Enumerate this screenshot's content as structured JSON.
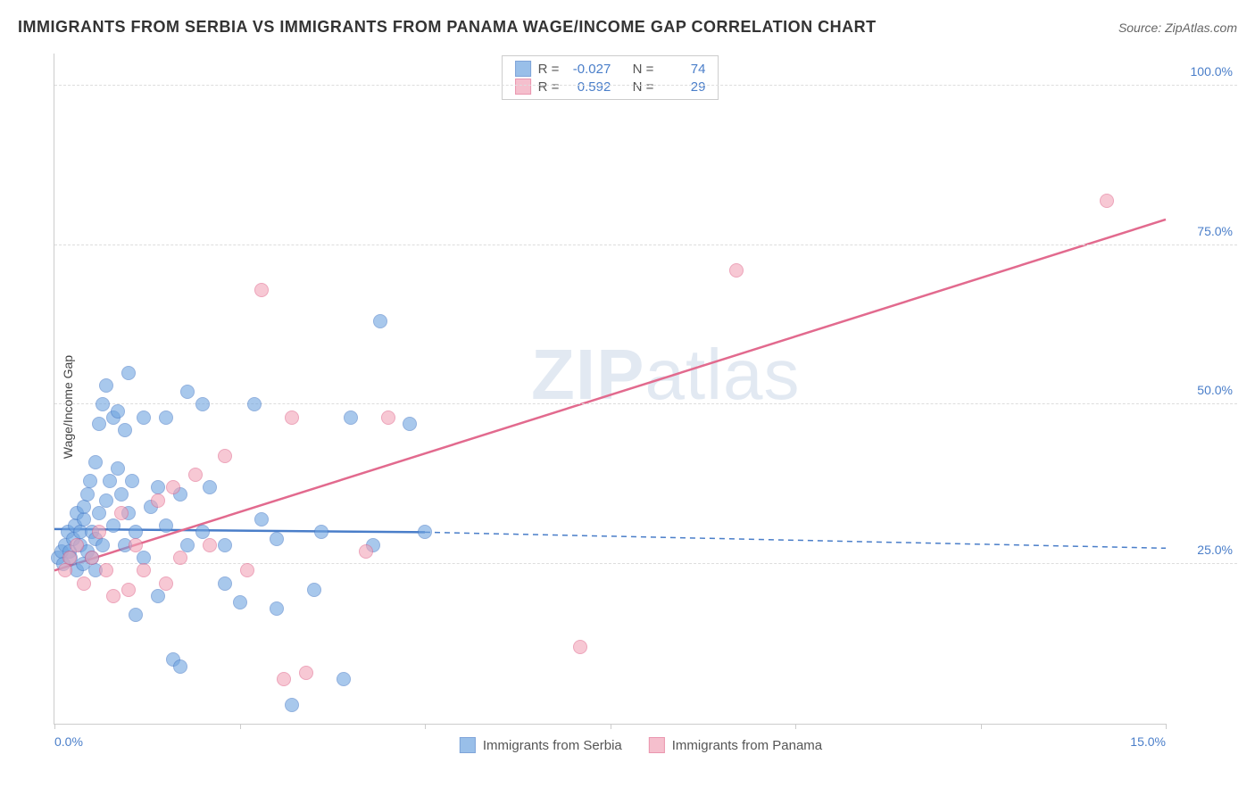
{
  "title": "IMMIGRANTS FROM SERBIA VS IMMIGRANTS FROM PANAMA WAGE/INCOME GAP CORRELATION CHART",
  "source_prefix": "Source: ",
  "source_name": "ZipAtlas.com",
  "watermark_left": "ZIP",
  "watermark_right": "atlas",
  "chart": {
    "type": "scatter",
    "ylabel": "Wage/Income Gap",
    "background_color": "#ffffff",
    "grid_color": "#dddddd",
    "axis_color": "#cccccc",
    "tick_label_color": "#4a7ec9",
    "xlim": [
      0,
      15
    ],
    "ylim": [
      0,
      105
    ],
    "x_ticks": [
      0,
      2.5,
      5,
      7.5,
      10,
      12.5,
      15
    ],
    "x_tick_labels_shown": {
      "0": "0.0%",
      "15": "15.0%"
    },
    "y_gridlines": [
      25,
      50,
      75,
      100
    ],
    "y_tick_labels": {
      "25": "25.0%",
      "50": "50.0%",
      "75": "75.0%",
      "100": "100.0%"
    },
    "point_radius": 8,
    "point_fill_opacity": 0.35,
    "series": [
      {
        "name": "Immigrants from Serbia",
        "color": "#6fa4e0",
        "stroke": "#4a7ec9",
        "R": "-0.027",
        "N": "74",
        "trend": {
          "x1": 0.0,
          "y1": 30.5,
          "x2": 5.0,
          "y2": 30.0,
          "dash_x2": 15.0,
          "dash_y2": 27.5,
          "stroke_width": 2.5
        },
        "points": [
          [
            0.05,
            26
          ],
          [
            0.1,
            27
          ],
          [
            0.12,
            25
          ],
          [
            0.15,
            28
          ],
          [
            0.18,
            30
          ],
          [
            0.2,
            27
          ],
          [
            0.22,
            26
          ],
          [
            0.25,
            29
          ],
          [
            0.28,
            31
          ],
          [
            0.3,
            24
          ],
          [
            0.3,
            33
          ],
          [
            0.35,
            28
          ],
          [
            0.35,
            30
          ],
          [
            0.38,
            25
          ],
          [
            0.4,
            32
          ],
          [
            0.4,
            34
          ],
          [
            0.45,
            27
          ],
          [
            0.45,
            36
          ],
          [
            0.48,
            38
          ],
          [
            0.5,
            26
          ],
          [
            0.5,
            30
          ],
          [
            0.55,
            41
          ],
          [
            0.55,
            29
          ],
          [
            0.6,
            47
          ],
          [
            0.6,
            33
          ],
          [
            0.65,
            50
          ],
          [
            0.65,
            28
          ],
          [
            0.7,
            35
          ],
          [
            0.7,
            53
          ],
          [
            0.75,
            38
          ],
          [
            0.8,
            31
          ],
          [
            0.8,
            48
          ],
          [
            0.85,
            40
          ],
          [
            0.85,
            49
          ],
          [
            0.9,
            36
          ],
          [
            0.95,
            28
          ],
          [
            1.0,
            33
          ],
          [
            1.0,
            55
          ],
          [
            1.05,
            38
          ],
          [
            1.1,
            17
          ],
          [
            1.1,
            30
          ],
          [
            1.2,
            48
          ],
          [
            1.2,
            26
          ],
          [
            1.3,
            34
          ],
          [
            1.4,
            37
          ],
          [
            1.4,
            20
          ],
          [
            1.5,
            48
          ],
          [
            1.5,
            31
          ],
          [
            1.6,
            10
          ],
          [
            1.7,
            36
          ],
          [
            1.8,
            52
          ],
          [
            1.8,
            28
          ],
          [
            2.0,
            50
          ],
          [
            2.0,
            30
          ],
          [
            2.1,
            37
          ],
          [
            2.3,
            28
          ],
          [
            2.3,
            22
          ],
          [
            2.5,
            19
          ],
          [
            2.7,
            50
          ],
          [
            2.8,
            32
          ],
          [
            3.0,
            18
          ],
          [
            3.0,
            29
          ],
          [
            3.2,
            3
          ],
          [
            3.5,
            21
          ],
          [
            3.6,
            30
          ],
          [
            3.9,
            7
          ],
          [
            4.0,
            48
          ],
          [
            4.3,
            28
          ],
          [
            4.4,
            63
          ],
          [
            4.8,
            47
          ],
          [
            5.0,
            30
          ],
          [
            1.7,
            9
          ],
          [
            0.95,
            46
          ],
          [
            0.55,
            24
          ]
        ]
      },
      {
        "name": "Immigrants from Panama",
        "color": "#f2a5b8",
        "stroke": "#e26a8e",
        "R": "0.592",
        "N": "29",
        "trend": {
          "x1": 0.0,
          "y1": 24.0,
          "x2": 15.0,
          "y2": 79.0,
          "stroke_width": 2.5
        },
        "points": [
          [
            0.15,
            24
          ],
          [
            0.2,
            26
          ],
          [
            0.3,
            28
          ],
          [
            0.4,
            22
          ],
          [
            0.5,
            26
          ],
          [
            0.6,
            30
          ],
          [
            0.7,
            24
          ],
          [
            0.8,
            20
          ],
          [
            0.9,
            33
          ],
          [
            1.0,
            21
          ],
          [
            1.1,
            28
          ],
          [
            1.2,
            24
          ],
          [
            1.4,
            35
          ],
          [
            1.5,
            22
          ],
          [
            1.7,
            26
          ],
          [
            1.9,
            39
          ],
          [
            2.1,
            28
          ],
          [
            2.3,
            42
          ],
          [
            2.6,
            24
          ],
          [
            2.8,
            68
          ],
          [
            3.1,
            7
          ],
          [
            3.2,
            48
          ],
          [
            3.4,
            8
          ],
          [
            4.2,
            27
          ],
          [
            4.5,
            48
          ],
          [
            7.1,
            12
          ],
          [
            9.2,
            71
          ],
          [
            14.2,
            82
          ],
          [
            1.6,
            37
          ]
        ]
      }
    ]
  },
  "stats_box": {
    "R_label": "R =",
    "N_label": "N ="
  }
}
